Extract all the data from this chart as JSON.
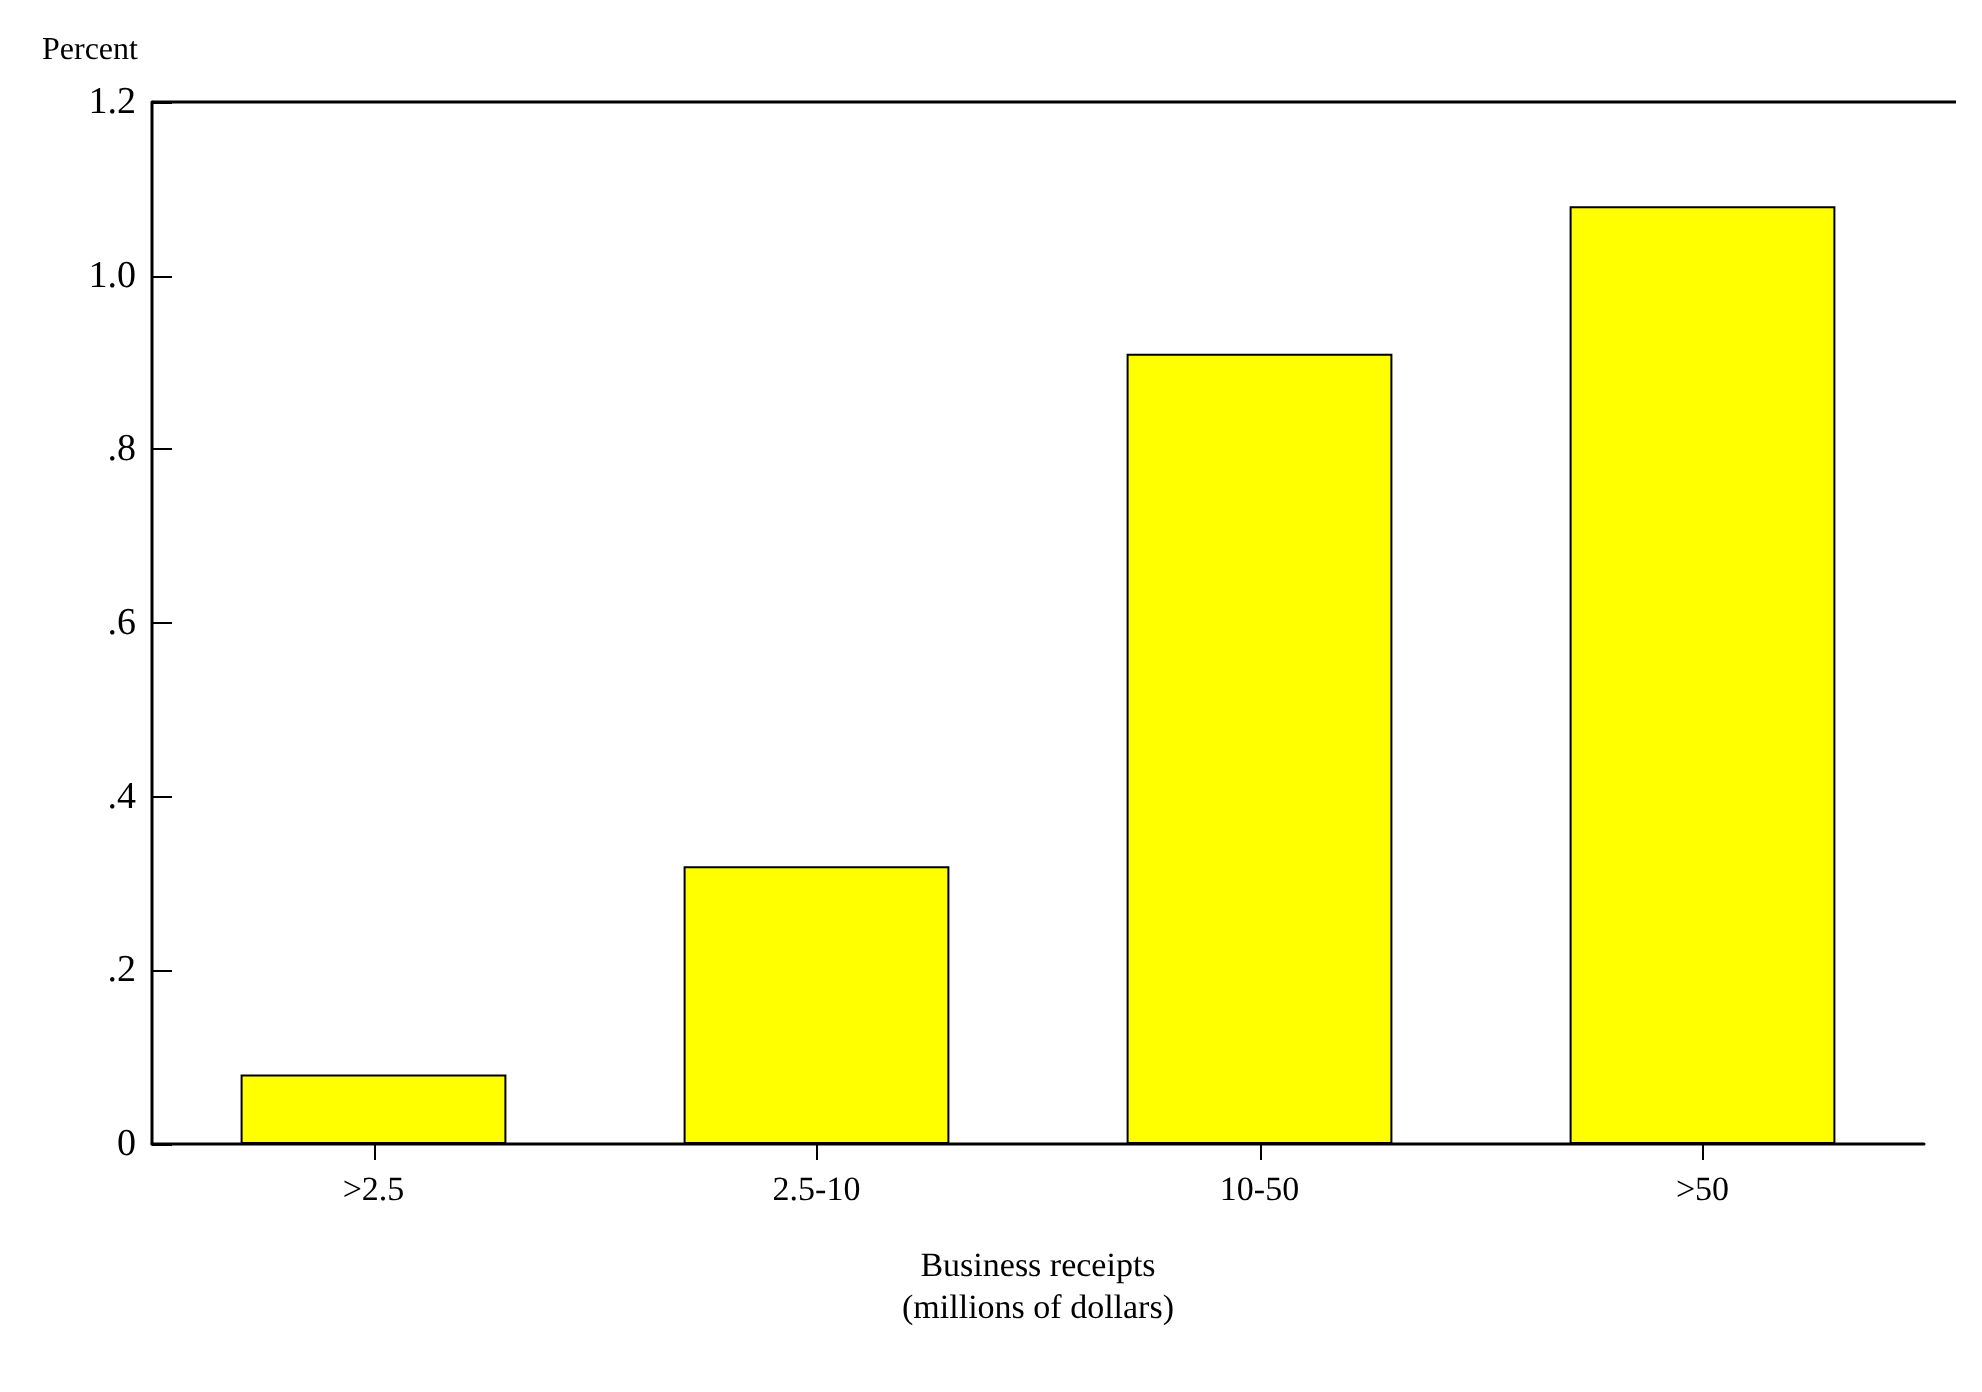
{
  "chart_data": {
    "type": "bar",
    "ylabel": "Percent",
    "xlabel": "Business receipts\n(millions of dollars)",
    "categories": [
      ">2.5",
      "2.5-10",
      "10-50",
      ">50"
    ],
    "values": [
      0.08,
      0.32,
      0.91,
      1.08
    ],
    "color": "#ffff00",
    "ylim": [
      0,
      1.2
    ],
    "yticks": [
      0,
      {
        "value": 0.2,
        "label": ".2"
      },
      {
        "value": 0.4,
        "label": ".4"
      },
      {
        "value": 0.6,
        "label": ".6"
      },
      {
        "value": 0.8,
        "label": ".8"
      },
      {
        "value": 1.0,
        "label": "1.0"
      },
      {
        "value": 1.2,
        "label": "1.2"
      }
    ],
    "grid": false
  }
}
